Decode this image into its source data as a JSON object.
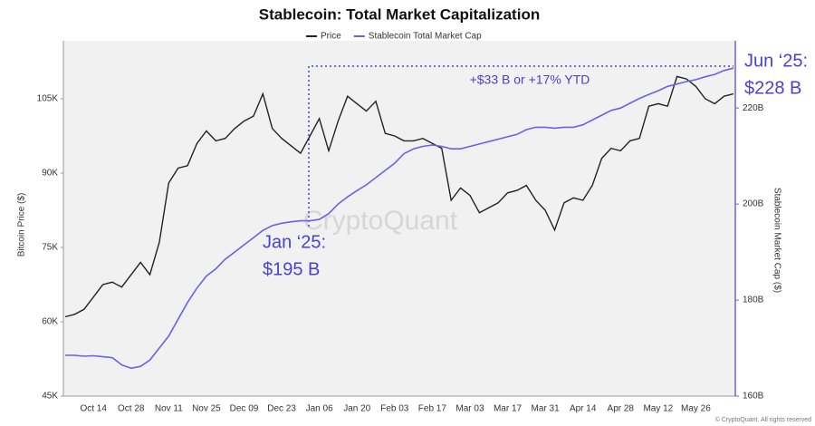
{
  "chart_data": {
    "type": "line",
    "title": "Stablecoin: Total Market Capitalization",
    "y_label": "Bitcoin Price ($)",
    "y2_label": "Stablecoin Market Cap ($)",
    "watermark": "CryptoQuant",
    "footer": "© CryptoQuant. All rights reserved",
    "annotations": [
      "+$33 B or +17% YTD",
      "Jan ‘25:",
      "$195 B",
      "Jun ‘25:",
      "$228 B"
    ],
    "categories": [
      null,
      null,
      null,
      "Oct 14",
      null,
      null,
      null,
      "Oct 28",
      null,
      null,
      null,
      "Nov 11",
      null,
      null,
      null,
      "Nov 25",
      null,
      null,
      null,
      "Dec 09",
      null,
      null,
      null,
      "Dec 23",
      null,
      null,
      null,
      "Jan 06",
      null,
      null,
      null,
      "Jan 20",
      null,
      null,
      null,
      "Feb 03",
      null,
      null,
      null,
      "Feb 17",
      null,
      null,
      null,
      "Mar 03",
      null,
      null,
      null,
      "Mar 17",
      null,
      null,
      null,
      "Mar 31",
      null,
      null,
      null,
      "Apr 14",
      null,
      null,
      null,
      "Apr 28",
      null,
      null,
      null,
      "May 12",
      null,
      null,
      null,
      "May 26",
      null,
      null,
      null,
      null
    ],
    "series": [
      {
        "name": "Price",
        "color": "#222222",
        "values": [
          61000,
          61500,
          62500,
          65000,
          67500,
          68000,
          67000,
          69500,
          72000,
          69500,
          76000,
          88000,
          91000,
          91500,
          96000,
          98500,
          96500,
          97000,
          99000,
          100500,
          101500,
          106000,
          99000,
          97000,
          95500,
          94000,
          97500,
          101000,
          94500,
          100500,
          105500,
          104000,
          102500,
          104500,
          98000,
          97500,
          96500,
          96500,
          97000,
          96000,
          95000,
          84500,
          87000,
          85500,
          82000,
          83000,
          84000,
          86000,
          86500,
          87500,
          84500,
          82500,
          78500,
          84000,
          85000,
          84500,
          87500,
          93000,
          95000,
          94500,
          96500,
          97000,
          103500,
          104000,
          103500,
          109500,
          109000,
          107500,
          105000,
          104000,
          105500,
          106000
        ]
      },
      {
        "name": "Stablecoin Total Market Cap",
        "color": "#6e5ff0",
        "axis": "y2",
        "values": [
          168.5,
          168.5,
          168.3,
          168.4,
          168.2,
          168.0,
          166.5,
          165.8,
          166.2,
          167.5,
          170.0,
          172.5,
          176.0,
          179.5,
          182.5,
          185.0,
          186.5,
          188.5,
          190.0,
          191.5,
          193.0,
          194.5,
          195.5,
          196.0,
          196.3,
          196.5,
          196.5,
          196.8,
          198.0,
          200.0,
          201.5,
          202.8,
          204.0,
          205.5,
          207.0,
          208.5,
          210.5,
          211.5,
          212.0,
          212.3,
          212.0,
          211.5,
          211.5,
          212.0,
          212.5,
          213.0,
          213.5,
          214.0,
          214.5,
          215.5,
          216.0,
          216.0,
          215.8,
          216.0,
          216.0,
          216.5,
          217.5,
          218.5,
          219.5,
          220.0,
          221.0,
          222.0,
          222.8,
          223.6,
          224.5,
          225.0,
          225.5,
          225.9,
          226.5,
          227.0,
          227.8,
          228.3
        ]
      }
    ],
    "ylim": [
      45000,
      116700
    ],
    "yticks": [
      {
        "value": 45000,
        "label": "45K"
      },
      {
        "value": 60000,
        "label": "60K"
      },
      {
        "value": 75000,
        "label": "75K"
      },
      {
        "value": 90000,
        "label": "90K"
      },
      {
        "value": 105000,
        "label": "105K"
      }
    ],
    "y2lim": [
      160,
      234
    ],
    "y2ticks": [
      {
        "value": 160,
        "label": "160B"
      },
      {
        "value": 180,
        "label": "180B"
      },
      {
        "value": 200,
        "label": "200B"
      },
      {
        "value": 220,
        "label": "220B"
      }
    ],
    "grid": false,
    "legend": "top"
  }
}
